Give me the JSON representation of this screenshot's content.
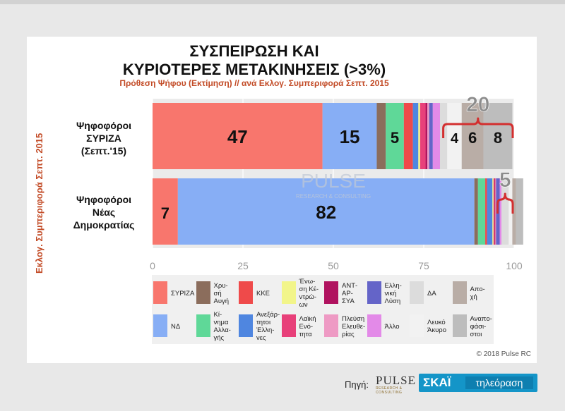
{
  "chart_data": {
    "type": "bar",
    "orientation": "horizontal",
    "stacked": true,
    "title_lines": [
      "ΣΥΣΠΕΙΡΩΣΗ ΚΑΙ",
      "ΚΥΡΙΟΤΕΡΕΣ ΜΕΤΑΚΙΝΗΣΕΙΣ (>3%)"
    ],
    "subtitle": "Πρόθεση Ψήφου (Εκτίμηση) // ανά Εκλογ. Συμπεριφορά Σεπτ. 2015",
    "ylabel": "Εκλογ. Συμπεριφορά Σεπτ. 2015",
    "xlim": [
      0,
      100
    ],
    "xticks": [
      "0",
      "25",
      "50",
      "75",
      "100"
    ],
    "grid": true,
    "legend_position": "bottom",
    "categories": [
      {
        "lines": [
          "Ψηφοφόροι",
          "ΣΥΡΙΖΑ",
          "(Σεπτ.'15)"
        ]
      },
      {
        "lines": [
          "Ψηφοφόροι",
          "Νέας",
          "Δημοκρατίας"
        ]
      }
    ],
    "series": [
      {
        "name": "ΣΥΡΙΖΑ",
        "legend_lines": [
          "ΣΥΡΙΖΑ"
        ],
        "color": "#f8766d",
        "values": [
          47,
          7
        ],
        "labels": [
          "47",
          "7"
        ]
      },
      {
        "name": "ΝΔ",
        "legend_lines": [
          "ΝΔ"
        ],
        "color": "#87aef5",
        "values": [
          15,
          82
        ],
        "labels": [
          "15",
          "82"
        ]
      },
      {
        "name": "Χρυσή Αυγή",
        "legend_lines": [
          "Χρυ-",
          "σή",
          "Αυγή"
        ],
        "color": "#8b6d5c",
        "values": [
          2.5,
          1
        ],
        "labels": [
          "",
          ""
        ]
      },
      {
        "name": "Κίνημα Αλλαγής",
        "legend_lines": [
          "Κί-",
          "νημα",
          "Αλλα-",
          "γής"
        ],
        "color": "#5fd898",
        "values": [
          5,
          2
        ],
        "labels": [
          "5",
          ""
        ]
      },
      {
        "name": "ΚΚΕ",
        "legend_lines": [
          "ΚΚΕ"
        ],
        "color": "#ef4a4a",
        "values": [
          2.5,
          0.5
        ],
        "labels": [
          "",
          ""
        ]
      },
      {
        "name": "Ανεξάρτητοι Έλληνες",
        "legend_lines": [
          "Ανεξάρ-",
          "τητοι",
          "Έλλη-",
          "νες"
        ],
        "color": "#4f86e0",
        "values": [
          1.5,
          1.5
        ],
        "labels": [
          "",
          ""
        ]
      },
      {
        "name": "Ένωση Κεντρώων",
        "legend_lines": [
          "Ένω-",
          "ση Κέ-",
          "ντρώ-",
          "ων"
        ],
        "color": "#f2f58a",
        "values": [
          0.5,
          0.3
        ],
        "labels": [
          "",
          ""
        ]
      },
      {
        "name": "Λαϊκή Ενότητα",
        "legend_lines": [
          "Λαϊκή",
          "Ενό-",
          "τητα"
        ],
        "color": "#e8407a",
        "values": [
          1.5,
          0.3
        ],
        "labels": [
          "",
          ""
        ]
      },
      {
        "name": "ΑΝΤΑΡΣΥΑ",
        "legend_lines": [
          "ΑΝΤ-",
          "ΑΡ-",
          "ΣΥΑ"
        ],
        "color": "#b0125f",
        "values": [
          0.5,
          0.2
        ],
        "labels": [
          "",
          ""
        ]
      },
      {
        "name": "Πλεύση Ελευθερίας",
        "legend_lines": [
          "Πλεύση",
          "Ελευθε-",
          "ρίας"
        ],
        "color": "#ee9ac4",
        "values": [
          0.5,
          0.2
        ],
        "labels": [
          "",
          ""
        ]
      },
      {
        "name": "Ελληνική Λύση",
        "legend_lines": [
          "Ελλη-",
          "νική",
          "Λύση"
        ],
        "color": "#6464c8",
        "values": [
          1,
          1
        ],
        "labels": [
          "",
          ""
        ]
      },
      {
        "name": "Άλλο",
        "legend_lines": [
          "Άλλο"
        ],
        "color": "#e38ae8",
        "values": [
          2,
          0.5
        ],
        "labels": [
          "",
          ""
        ]
      },
      {
        "name": "ΔΑ",
        "legend_lines": [
          "ΔΑ"
        ],
        "color": "#dcdcdc",
        "values": [
          2,
          2
        ],
        "labels": [
          "",
          ""
        ]
      },
      {
        "name": "Λευκό Άκυρο",
        "legend_lines": [
          "Λευκό",
          "Άκυρο"
        ],
        "color": "#f2f2f2",
        "values": [
          4,
          1
        ],
        "labels": [
          "4",
          ""
        ]
      },
      {
        "name": "Αποχή",
        "legend_lines": [
          "Απο-",
          "χή"
        ],
        "color": "#b9ada6",
        "values": [
          6,
          1
        ],
        "labels": [
          "6",
          ""
        ]
      },
      {
        "name": "Αναποφάσιστοι",
        "legend_lines": [
          "Αναπο-",
          "φάσι-",
          "στοι"
        ],
        "color": "#bdbdbd",
        "values": [
          8,
          2
        ],
        "labels": [
          "8",
          ""
        ]
      }
    ],
    "annotations": [
      {
        "category": 0,
        "text": "20",
        "bracket_from": 80,
        "bracket_to": 100
      },
      {
        "category": 1,
        "text": "5",
        "bracket_from": 95,
        "bracket_to": 100
      }
    ]
  },
  "watermark": {
    "line1": "PULSE",
    "line2": "RESEARCH & CONSULTING"
  },
  "footer": {
    "copyright": "© 2018 Pulse RC",
    "source_label": "Πηγή:",
    "pulse_word": "PULSE",
    "pulse_sub": "RESEARCH & CONSULTING",
    "skai_brand": "ΣΚΑΪ",
    "skai_tv": "τηλεόραση"
  },
  "colors": {
    "accent": "#c24a25",
    "skai_blue": "#1495c8",
    "bracket": "#d32f2f"
  }
}
